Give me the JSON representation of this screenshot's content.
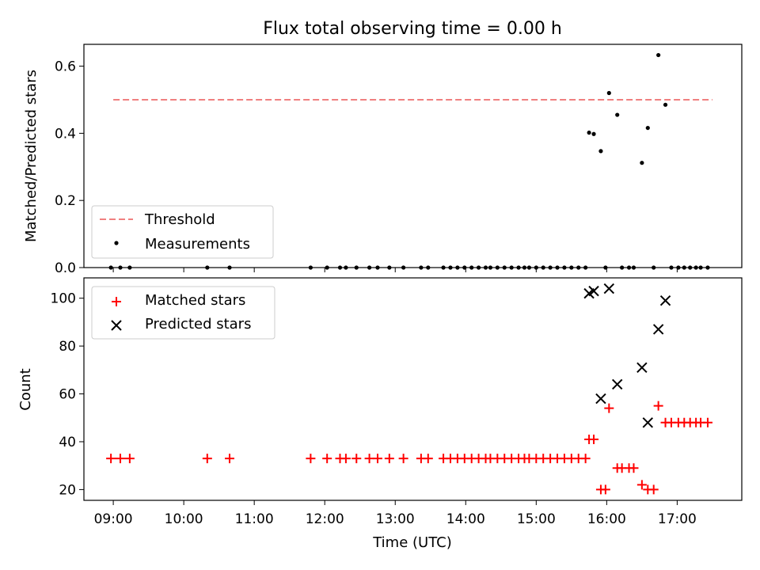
{
  "chart_data": [
    {
      "type": "scatter",
      "title": "Flux total observing time = 0.00 h",
      "xlabel": "",
      "ylabel": "Matched/Predicted stars",
      "xlim": [
        "08:35",
        "17:55"
      ],
      "ylim": [
        0,
        0.665
      ],
      "yticks": [
        "0.0",
        "0.2",
        "0.4",
        "0.6"
      ],
      "legend": {
        "placement": "lower-left",
        "entries": [
          {
            "label": "Threshold",
            "marker": "dashed-line",
            "color": "#f08080"
          },
          {
            "label": "Measurements",
            "marker": "dot",
            "color": "#000000"
          }
        ]
      },
      "threshold": {
        "name": "Threshold",
        "y": 0.5,
        "x_range": [
          "09:00",
          "17:30"
        ],
        "color": "#f08080"
      },
      "series": [
        {
          "name": "Measurements",
          "color": "#000000",
          "points": [
            [
              "08:58",
              0
            ],
            [
              "09:06",
              0
            ],
            [
              "09:14",
              0
            ],
            [
              "10:20",
              0
            ],
            [
              "10:39",
              0
            ],
            [
              "11:48",
              0
            ],
            [
              "12:02",
              0
            ],
            [
              "12:13",
              0
            ],
            [
              "12:18",
              0
            ],
            [
              "12:27",
              0
            ],
            [
              "12:38",
              0
            ],
            [
              "12:45",
              0
            ],
            [
              "12:55",
              0
            ],
            [
              "13:07",
              0
            ],
            [
              "13:22",
              0
            ],
            [
              "13:28",
              0
            ],
            [
              "13:41",
              0
            ],
            [
              "13:47",
              0
            ],
            [
              "13:53",
              0
            ],
            [
              "13:59",
              0
            ],
            [
              "14:05",
              0
            ],
            [
              "14:11",
              0
            ],
            [
              "14:17",
              0
            ],
            [
              "14:21",
              0
            ],
            [
              "14:27",
              0
            ],
            [
              "14:33",
              0
            ],
            [
              "14:39",
              0
            ],
            [
              "14:45",
              0
            ],
            [
              "14:50",
              0
            ],
            [
              "14:54",
              0
            ],
            [
              "15:00",
              0
            ],
            [
              "15:06",
              0
            ],
            [
              "15:12",
              0
            ],
            [
              "15:18",
              0
            ],
            [
              "15:24",
              0
            ],
            [
              "15:30",
              0
            ],
            [
              "15:36",
              0
            ],
            [
              "15:42",
              0
            ],
            [
              "15:45",
              0.402
            ],
            [
              "15:49",
              0.398
            ],
            [
              "15:55",
              0.347
            ],
            [
              "15:59",
              0
            ],
            [
              "16:02",
              0.52
            ],
            [
              "16:09",
              0.455
            ],
            [
              "16:13",
              0
            ],
            [
              "16:19",
              0
            ],
            [
              "16:23",
              0
            ],
            [
              "16:30",
              0.312
            ],
            [
              "16:35",
              0.416
            ],
            [
              "16:40",
              0
            ],
            [
              "16:44",
              0.633
            ],
            [
              "16:50",
              0.485
            ],
            [
              "16:55",
              0
            ],
            [
              "17:01",
              0
            ],
            [
              "17:06",
              0
            ],
            [
              "17:11",
              0
            ],
            [
              "17:16",
              0
            ],
            [
              "17:20",
              0
            ],
            [
              "17:26",
              0
            ]
          ]
        }
      ]
    },
    {
      "type": "scatter",
      "title": "",
      "xlabel": "Time (UTC)",
      "ylabel": "Count",
      "xlim": [
        "08:35",
        "17:55"
      ],
      "ylim": [
        15.5,
        108.5
      ],
      "yticks": [
        "20",
        "40",
        "60",
        "80",
        "100"
      ],
      "xticks": [
        "09:00",
        "10:00",
        "11:00",
        "12:00",
        "13:00",
        "14:00",
        "15:00",
        "16:00",
        "17:00"
      ],
      "legend": {
        "placement": "top-left",
        "entries": [
          {
            "label": "Matched stars",
            "marker": "plus",
            "color": "#ff0000"
          },
          {
            "label": "Predicted stars",
            "marker": "x",
            "color": "#000000"
          }
        ]
      },
      "series": [
        {
          "name": "Matched stars",
          "color": "#ff0000",
          "points": [
            [
              "08:58",
              33
            ],
            [
              "09:06",
              33
            ],
            [
              "09:14",
              33
            ],
            [
              "10:20",
              33
            ],
            [
              "10:39",
              33
            ],
            [
              "11:48",
              33
            ],
            [
              "12:02",
              33
            ],
            [
              "12:13",
              33
            ],
            [
              "12:18",
              33
            ],
            [
              "12:27",
              33
            ],
            [
              "12:38",
              33
            ],
            [
              "12:45",
              33
            ],
            [
              "12:55",
              33
            ],
            [
              "13:07",
              33
            ],
            [
              "13:22",
              33
            ],
            [
              "13:28",
              33
            ],
            [
              "13:41",
              33
            ],
            [
              "13:47",
              33
            ],
            [
              "13:53",
              33
            ],
            [
              "13:59",
              33
            ],
            [
              "14:05",
              33
            ],
            [
              "14:11",
              33
            ],
            [
              "14:17",
              33
            ],
            [
              "14:21",
              33
            ],
            [
              "14:27",
              33
            ],
            [
              "14:33",
              33
            ],
            [
              "14:39",
              33
            ],
            [
              "14:45",
              33
            ],
            [
              "14:50",
              33
            ],
            [
              "14:54",
              33
            ],
            [
              "15:00",
              33
            ],
            [
              "15:06",
              33
            ],
            [
              "15:12",
              33
            ],
            [
              "15:18",
              33
            ],
            [
              "15:24",
              33
            ],
            [
              "15:30",
              33
            ],
            [
              "15:36",
              33
            ],
            [
              "15:42",
              33
            ],
            [
              "15:45",
              41
            ],
            [
              "15:49",
              41
            ],
            [
              "15:55",
              20
            ],
            [
              "15:59",
              20
            ],
            [
              "16:02",
              54
            ],
            [
              "16:09",
              29
            ],
            [
              "16:13",
              29
            ],
            [
              "16:19",
              29
            ],
            [
              "16:23",
              29
            ],
            [
              "16:30",
              22
            ],
            [
              "16:35",
              20
            ],
            [
              "16:40",
              20
            ],
            [
              "16:44",
              55
            ],
            [
              "16:50",
              48
            ],
            [
              "16:55",
              48
            ],
            [
              "17:01",
              48
            ],
            [
              "17:06",
              48
            ],
            [
              "17:11",
              48
            ],
            [
              "17:16",
              48
            ],
            [
              "17:20",
              48
            ],
            [
              "17:26",
              48
            ]
          ]
        },
        {
          "name": "Predicted stars",
          "color": "#000000",
          "points": [
            [
              "15:45",
              102
            ],
            [
              "15:49",
              103
            ],
            [
              "15:55",
              58
            ],
            [
              "16:02",
              104
            ],
            [
              "16:09",
              64
            ],
            [
              "16:30",
              71
            ],
            [
              "16:35",
              48
            ],
            [
              "16:44",
              87
            ],
            [
              "16:50",
              99
            ]
          ]
        }
      ]
    }
  ]
}
